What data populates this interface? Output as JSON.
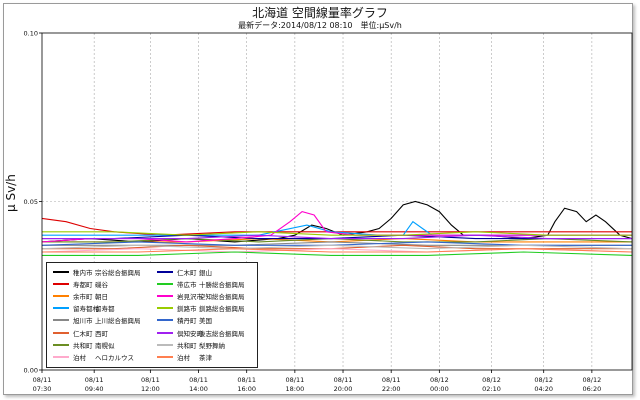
{
  "chart_data": {
    "type": "line",
    "title": "北海道 空間線量率グラフ",
    "subtitle": "最新データ:2014/08/12 08:10　単位:μSv/h",
    "ylabel": "μ Sv/h",
    "ylim": [
      0.0,
      0.1
    ],
    "yticks": [
      "0.00",
      "0.05",
      "0.10"
    ],
    "xlim_hours": [
      0,
      24.5
    ],
    "x_ticks": [
      {
        "date": "08/11",
        "time": "07:30",
        "h": 0
      },
      {
        "date": "08/11",
        "time": "09:40",
        "h": 2.1667
      },
      {
        "date": "08/11",
        "time": "12:00",
        "h": 4.5
      },
      {
        "date": "08/11",
        "time": "14:00",
        "h": 6.5
      },
      {
        "date": "08/11",
        "time": "16:00",
        "h": 8.5
      },
      {
        "date": "08/11",
        "time": "18:00",
        "h": 10.5
      },
      {
        "date": "08/11",
        "time": "20:00",
        "h": 12.5
      },
      {
        "date": "08/11",
        "time": "22:00",
        "h": 14.5
      },
      {
        "date": "08/12",
        "time": "00:00",
        "h": 16.5
      },
      {
        "date": "08/12",
        "time": "02:10",
        "h": 18.6667
      },
      {
        "date": "08/12",
        "time": "04:20",
        "h": 20.8333
      },
      {
        "date": "08/12",
        "time": "06:20",
        "h": 22.8333
      }
    ],
    "grid": true,
    "legend_position": "bottom-left",
    "series": [
      {
        "name": "稚内市 宗谷総合振興局",
        "city": "稚内市",
        "site": "宗谷総合振興局",
        "color": "#000000",
        "values": [
          [
            0,
            0.038
          ],
          [
            2,
            0.039
          ],
          [
            4,
            0.038
          ],
          [
            6,
            0.039
          ],
          [
            8,
            0.038
          ],
          [
            9.8,
            0.039
          ],
          [
            10.5,
            0.04
          ],
          [
            11.2,
            0.043
          ],
          [
            11.8,
            0.042
          ],
          [
            12.5,
            0.04
          ],
          [
            13.5,
            0.041
          ],
          [
            14,
            0.042
          ],
          [
            14.5,
            0.045
          ],
          [
            15,
            0.049
          ],
          [
            15.5,
            0.05
          ],
          [
            16,
            0.049
          ],
          [
            16.5,
            0.047
          ],
          [
            17,
            0.043
          ],
          [
            17.5,
            0.04
          ],
          [
            18.5,
            0.04
          ],
          [
            20,
            0.039
          ],
          [
            21,
            0.04
          ],
          [
            21.3,
            0.044
          ],
          [
            21.7,
            0.048
          ],
          [
            22.2,
            0.047
          ],
          [
            22.6,
            0.044
          ],
          [
            23,
            0.046
          ],
          [
            23.4,
            0.044
          ],
          [
            24,
            0.04
          ],
          [
            24.5,
            0.039
          ]
        ]
      },
      {
        "name": "寿都町 磯谷",
        "city": "寿都町",
        "site": "磯谷",
        "color": "#dd0000",
        "values": [
          [
            0,
            0.045
          ],
          [
            1,
            0.044
          ],
          [
            2,
            0.042
          ],
          [
            3,
            0.041
          ],
          [
            5,
            0.04
          ],
          [
            8,
            0.041
          ],
          [
            10,
            0.041
          ],
          [
            11,
            0.041
          ],
          [
            14,
            0.041
          ],
          [
            18,
            0.041
          ],
          [
            22,
            0.041
          ],
          [
            24.5,
            0.041
          ]
        ]
      },
      {
        "name": "余市町 朝日",
        "city": "余市町",
        "site": "朝日",
        "color": "#ff8000",
        "values": [
          [
            0,
            0.038
          ],
          [
            3,
            0.038
          ],
          [
            6,
            0.038
          ],
          [
            9,
            0.039
          ],
          [
            12,
            0.038
          ],
          [
            15,
            0.039
          ],
          [
            18,
            0.038
          ],
          [
            21,
            0.038
          ],
          [
            24.5,
            0.038
          ]
        ]
      },
      {
        "name": "留寿都村 留寿都",
        "city": "留寿都村",
        "site": "留寿都",
        "color": "#00a0ff",
        "values": [
          [
            0,
            0.04
          ],
          [
            3,
            0.04
          ],
          [
            6,
            0.04
          ],
          [
            9,
            0.04
          ],
          [
            11,
            0.043
          ],
          [
            12,
            0.041
          ],
          [
            14,
            0.04
          ],
          [
            15,
            0.04
          ],
          [
            15.4,
            0.044
          ],
          [
            15.8,
            0.042
          ],
          [
            16.2,
            0.04
          ],
          [
            19,
            0.04
          ],
          [
            22,
            0.04
          ],
          [
            24.5,
            0.04
          ]
        ]
      },
      {
        "name": "旭川市 上川総合振興局",
        "city": "旭川市",
        "site": "上川総合振興局",
        "color": "#888888",
        "values": [
          [
            0,
            0.037
          ],
          [
            4,
            0.037
          ],
          [
            8,
            0.037
          ],
          [
            12,
            0.038
          ],
          [
            16,
            0.037
          ],
          [
            20,
            0.037
          ],
          [
            24.5,
            0.037
          ]
        ]
      },
      {
        "name": "仁木町 西町",
        "city": "仁木町",
        "site": "西町",
        "color": "#e06030",
        "values": [
          [
            0,
            0.036
          ],
          [
            3,
            0.036
          ],
          [
            6,
            0.037
          ],
          [
            9,
            0.036
          ],
          [
            12,
            0.036
          ],
          [
            15,
            0.037
          ],
          [
            18,
            0.036
          ],
          [
            21,
            0.036
          ],
          [
            24.5,
            0.036
          ]
        ]
      },
      {
        "name": "共和町 南幌似",
        "city": "共和町",
        "site": "南幌似",
        "color": "#6b8e23",
        "values": [
          [
            0,
            0.038
          ],
          [
            3,
            0.038
          ],
          [
            6,
            0.039
          ],
          [
            9,
            0.038
          ],
          [
            12,
            0.039
          ],
          [
            15,
            0.038
          ],
          [
            18,
            0.038
          ],
          [
            21,
            0.039
          ],
          [
            24.5,
            0.038
          ]
        ]
      },
      {
        "name": "泊村 ヘロカルウス",
        "city": "泊村",
        "site": "ヘロカルウス",
        "color": "#ffaacc",
        "values": [
          [
            0,
            0.035
          ],
          [
            4,
            0.036
          ],
          [
            8,
            0.035
          ],
          [
            12,
            0.036
          ],
          [
            16,
            0.035
          ],
          [
            20,
            0.036
          ],
          [
            24.5,
            0.035
          ]
        ]
      },
      {
        "name": "仁木町 銀山",
        "city": "仁木町",
        "site": "銀山",
        "color": "#000099",
        "values": [
          [
            0,
            0.039
          ],
          [
            3,
            0.039
          ],
          [
            6,
            0.04
          ],
          [
            9,
            0.039
          ],
          [
            12,
            0.039
          ],
          [
            15,
            0.04
          ],
          [
            18,
            0.039
          ],
          [
            21,
            0.039
          ],
          [
            24.5,
            0.039
          ]
        ]
      },
      {
        "name": "帯広市 十勝総合振興局",
        "city": "帯広市",
        "site": "十勝総合振興局",
        "color": "#22cc22",
        "values": [
          [
            0,
            0.034
          ],
          [
            4,
            0.034
          ],
          [
            8,
            0.035
          ],
          [
            12,
            0.034
          ],
          [
            16,
            0.034
          ],
          [
            20,
            0.035
          ],
          [
            24.5,
            0.034
          ]
        ]
      },
      {
        "name": "岩見沢市 空知総合振興局",
        "city": "岩見沢市",
        "site": "空知総合振興局",
        "color": "#ff00cc",
        "values": [
          [
            0,
            0.038
          ],
          [
            2,
            0.039
          ],
          [
            4,
            0.039
          ],
          [
            6,
            0.038
          ],
          [
            8,
            0.039
          ],
          [
            9.5,
            0.04
          ],
          [
            10.3,
            0.044
          ],
          [
            10.8,
            0.047
          ],
          [
            11.3,
            0.046
          ],
          [
            11.8,
            0.041
          ],
          [
            13,
            0.04
          ],
          [
            16,
            0.04
          ],
          [
            19,
            0.04
          ],
          [
            22,
            0.04
          ],
          [
            24.5,
            0.04
          ]
        ]
      },
      {
        "name": "釧路市 釧路総合振興局",
        "city": "釧路市",
        "site": "釧路総合振興局",
        "color": "#99cc00",
        "values": [
          [
            0,
            0.041
          ],
          [
            3,
            0.041
          ],
          [
            6,
            0.04
          ],
          [
            9,
            0.041
          ],
          [
            12,
            0.04
          ],
          [
            15,
            0.04
          ],
          [
            18,
            0.041
          ],
          [
            21,
            0.04
          ],
          [
            24.5,
            0.04
          ]
        ]
      },
      {
        "name": "積丹町 美国",
        "city": "積丹町",
        "site": "美国",
        "color": "#3366cc",
        "values": [
          [
            0,
            0.037
          ],
          [
            4,
            0.038
          ],
          [
            8,
            0.037
          ],
          [
            12,
            0.037
          ],
          [
            16,
            0.038
          ],
          [
            20,
            0.037
          ],
          [
            24.5,
            0.037
          ]
        ]
      },
      {
        "name": "倶知安町 後志総合振興局",
        "city": "倶知安町",
        "site": "後志総合振興局",
        "color": "#a020f0",
        "values": [
          [
            0,
            0.039
          ],
          [
            3,
            0.039
          ],
          [
            6,
            0.039
          ],
          [
            9,
            0.04
          ],
          [
            12,
            0.039
          ],
          [
            15,
            0.039
          ],
          [
            18,
            0.04
          ],
          [
            21,
            0.039
          ],
          [
            24.5,
            0.039
          ]
        ]
      },
      {
        "name": "共和町 梨野舞納",
        "city": "共和町",
        "site": "梨野舞納",
        "color": "#bbbbbb",
        "values": [
          [
            0,
            0.036
          ],
          [
            4,
            0.037
          ],
          [
            8,
            0.036
          ],
          [
            12,
            0.037
          ],
          [
            16,
            0.036
          ],
          [
            20,
            0.037
          ],
          [
            24.5,
            0.036
          ]
        ]
      },
      {
        "name": "泊村 茶津",
        "city": "泊村",
        "site": "茶津",
        "color": "#ff7f50",
        "values": [
          [
            0,
            0.035
          ],
          [
            4,
            0.035
          ],
          [
            8,
            0.036
          ],
          [
            12,
            0.035
          ],
          [
            16,
            0.035
          ],
          [
            20,
            0.036
          ],
          [
            24.5,
            0.035
          ]
        ]
      }
    ]
  }
}
